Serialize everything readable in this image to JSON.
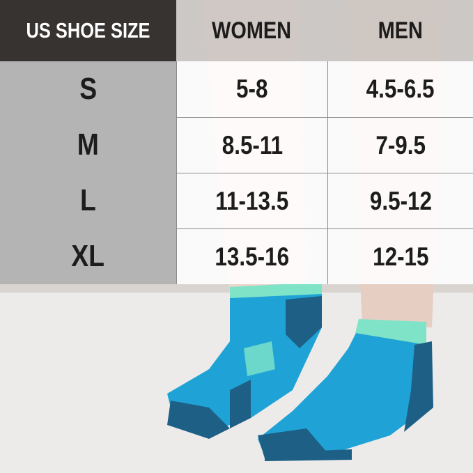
{
  "size_chart": {
    "headers": [
      "US SHOE SIZE",
      "WOMEN",
      "MEN"
    ],
    "rows": [
      {
        "size": "S",
        "women": "5-8",
        "men": "4.5-6.5"
      },
      {
        "size": "M",
        "women": "8.5-11",
        "men": "7-9.5"
      },
      {
        "size": "L",
        "women": "11-13.5",
        "men": "9.5-12"
      },
      {
        "size": "XL",
        "women": "13.5-16",
        "men": "12-15"
      }
    ]
  },
  "colors": {
    "header_dark": "#2d2a28",
    "sock_blue": "#1fa3d6",
    "sock_navy": "#1e5f86",
    "sock_mint": "#7fe3c8"
  }
}
